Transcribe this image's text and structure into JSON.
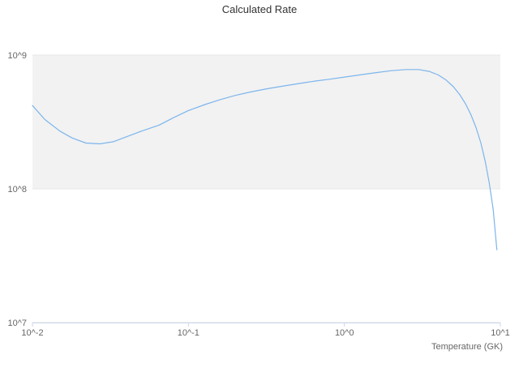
{
  "title": "Calculated Rate",
  "chart_data": {
    "type": "line",
    "title": "Calculated Rate",
    "xlabel": "Temperature (GK)",
    "ylabel": "",
    "xscale": "log",
    "yscale": "log",
    "xlim": [
      0.01,
      10
    ],
    "ylim": [
      10000000.0,
      1000000000.0
    ],
    "grid": "horizontal",
    "legend": "none",
    "xticks": [
      {
        "value": 0.01,
        "label": "10^-2"
      },
      {
        "value": 0.1,
        "label": "10^-1"
      },
      {
        "value": 1,
        "label": "10^0"
      },
      {
        "value": 10,
        "label": "10^1"
      }
    ],
    "yticks": [
      {
        "value": 10000000.0,
        "label": "10^7"
      },
      {
        "value": 100000000.0,
        "label": "10^8"
      },
      {
        "value": 1000000000.0,
        "label": "10^9"
      }
    ],
    "bands": [
      {
        "from": 100000000.0,
        "to": 1000000000.0,
        "color": "#f2f2f2"
      }
    ],
    "grid_color": "#e6e6e6",
    "axis_color": "#ccd6eb",
    "label_color": "#666666",
    "title_color": "#333333",
    "series": [
      {
        "name": "Calculated Rate",
        "color": "#7cb5ec",
        "x": [
          0.01,
          0.012,
          0.015,
          0.018,
          0.022,
          0.027,
          0.033,
          0.04,
          0.05,
          0.065,
          0.08,
          0.1,
          0.13,
          0.16,
          0.2,
          0.25,
          0.32,
          0.4,
          0.5,
          0.65,
          0.8,
          1.0,
          1.3,
          1.6,
          2.0,
          2.5,
          3.0,
          3.5,
          4.0,
          4.5,
          5.0,
          5.5,
          6.0,
          6.5,
          7.0,
          7.5,
          8.0,
          8.5,
          9.0,
          9.5
        ],
        "y": [
          420000000.0,
          330000000.0,
          270000000.0,
          240000000.0,
          220000000.0,
          217000000.0,
          225000000.0,
          245000000.0,
          270000000.0,
          300000000.0,
          340000000.0,
          385000000.0,
          430000000.0,
          465000000.0,
          500000000.0,
          530000000.0,
          560000000.0,
          585000000.0,
          610000000.0,
          640000000.0,
          660000000.0,
          685000000.0,
          715000000.0,
          740000000.0,
          765000000.0,
          780000000.0,
          780000000.0,
          755000000.0,
          710000000.0,
          650000000.0,
          580000000.0,
          505000000.0,
          430000000.0,
          355000000.0,
          285000000.0,
          220000000.0,
          160000000.0,
          110000000.0,
          70000000.0,
          35000000.0
        ]
      }
    ]
  }
}
